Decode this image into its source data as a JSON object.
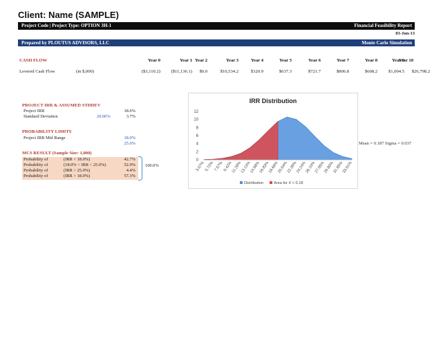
{
  "header": {
    "client_title": "Client: Name (SAMPLE)",
    "project_code": "Project Code | Project Type: OPTION 3H-1",
    "report_title": "Financial Feasibility Report",
    "date": "03-Jun-13",
    "prepared_by": "Prepared by PLOUTUS ADVISORS, LLC",
    "simulation": "Monte Carlo Simulation"
  },
  "cash_flow": {
    "title": "CASH FLOW",
    "years": [
      "Year 0",
      "Year 1",
      "Year 2",
      "Year 3",
      "Year 4",
      "Year 5",
      "Year 6",
      "Year 7",
      "Year 8",
      "Year 9",
      "Year 10"
    ],
    "row_label": "Levered Cash Flow",
    "units": "(in $,000)",
    "values": [
      "($3,110.2)",
      "($11,136.1)",
      "$0.0",
      "$10,534.2",
      "$320.9",
      "$637.3",
      "$721.7",
      "$806.8",
      "$608.2",
      "$1,004.5",
      "$26,798.2"
    ]
  },
  "irr": {
    "title": "PROJECT IRR & ASSUMED STDDEV",
    "project_irr_label": "Project IRR",
    "project_irr_value": "18.6%",
    "std_label": "Standard Deviation",
    "std_assumed": "20.00%",
    "std_value": "3.7%"
  },
  "limits": {
    "title": "PROBABILITY LIMITS",
    "mid_range_label": "Project IRR Mid Range",
    "low": "18.0%",
    "high": "25.0%"
  },
  "mcs": {
    "title": "MCS RESULT (Sample Size: 1,000)",
    "rows": [
      {
        "label": "Probability of",
        "cond": "(IRR < 18.0%)",
        "value": "42.7%"
      },
      {
        "label": "Probability of",
        "cond": "(18.0% < IRR < 25.0%)",
        "value": "52.9%"
      },
      {
        "label": "Probability of",
        "cond": "(IRR > 25.0%)",
        "value": "4.4%"
      },
      {
        "label": "Probability of",
        "cond": "(IRR > 18.0%)",
        "value": "57.3%"
      }
    ],
    "total": "100.0%"
  },
  "mean_sigma": "Mean = 0.187 Sigma = 0.037",
  "chart_data": {
    "type": "area",
    "title": "IRR Distribution",
    "ylim": [
      0,
      12
    ],
    "yticks": [
      "0",
      "2",
      "4",
      "6",
      "8",
      "10",
      "12"
    ],
    "categories": [
      "3.07%",
      "5.72%",
      "7.57%",
      "9.42%",
      "11.28%",
      "13.13%",
      "14.98%",
      "16.83%",
      "18.69%",
      "20.54%",
      "22.39%",
      "24.24%",
      "26.10%",
      "27.95%",
      "29.80%",
      "31.65%",
      "33.51%"
    ],
    "series": [
      {
        "name": "Distribution",
        "color": "#4f8fdc",
        "values": [
          0.05,
          0.15,
          0.35,
          0.8,
          1.6,
          3.0,
          5.0,
          7.3,
          9.5,
          10.6,
          10.0,
          8.2,
          5.8,
          3.5,
          1.8,
          0.8,
          0.3
        ]
      },
      {
        "name": "Area for X < 0.18",
        "color": "#e04848",
        "values": [
          0.05,
          0.15,
          0.35,
          0.8,
          1.6,
          3.0,
          5.0,
          7.3,
          9.5,
          0,
          0,
          0,
          0,
          0,
          0,
          0,
          0
        ]
      }
    ],
    "grid": false,
    "legend": "bottom"
  }
}
